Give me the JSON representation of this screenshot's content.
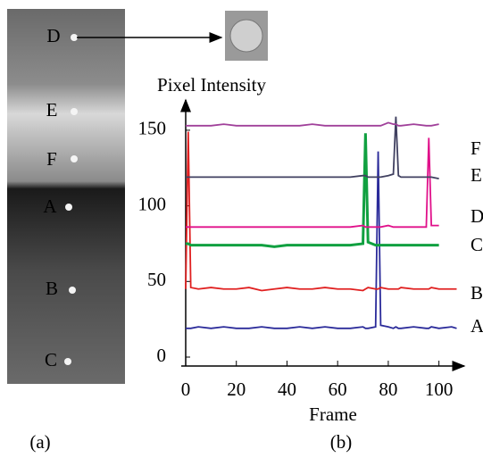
{
  "panel_a": {
    "labels": [
      "D",
      "E",
      "F",
      "A",
      "B",
      "C"
    ],
    "caption": "(a)"
  },
  "panel_b_caption": "(b)",
  "chart_data": {
    "type": "line",
    "y_label": "Pixel Intensity",
    "x_label": "Frame",
    "x": [
      0,
      1,
      2,
      5,
      10,
      15,
      20,
      25,
      30,
      35,
      40,
      45,
      50,
      55,
      60,
      65,
      70,
      71,
      72,
      75,
      76,
      77,
      80,
      82,
      83,
      84,
      85,
      90,
      95,
      96,
      97,
      100,
      105,
      107
    ],
    "xlim": [
      0,
      110
    ],
    "xticks": [
      0,
      20,
      40,
      60,
      80,
      100
    ],
    "ylim": [
      0,
      170
    ],
    "yticks": [
      0,
      50,
      100,
      150
    ],
    "series": [
      {
        "name": "A",
        "color": "#2b2b9a",
        "values": [
          19,
          19,
          19,
          20,
          19,
          20,
          19,
          19,
          20,
          19,
          19,
          20,
          19,
          20,
          19,
          19,
          20,
          19,
          19,
          20,
          136,
          21,
          20,
          19,
          20,
          19,
          19,
          20,
          19,
          19,
          20,
          19,
          20,
          19
        ]
      },
      {
        "name": "B",
        "color": "#e02020",
        "values": [
          45,
          149,
          46,
          45,
          46,
          45,
          45,
          46,
          44,
          45,
          46,
          45,
          45,
          46,
          45,
          45,
          44,
          45,
          46,
          45,
          45,
          46,
          45,
          45,
          45,
          45,
          46,
          45,
          45,
          45,
          46,
          45,
          45,
          45
        ]
      },
      {
        "name": "C",
        "color": "#10a040",
        "values": [
          75,
          75,
          74,
          74,
          74,
          74,
          74,
          74,
          74,
          73,
          74,
          74,
          74,
          74,
          74,
          74,
          75,
          148,
          76,
          74,
          74,
          74,
          74,
          74,
          74,
          74,
          74,
          74,
          74,
          74,
          74,
          74,
          null,
          null
        ]
      },
      {
        "name": "D",
        "color": "#e0108a",
        "values": [
          86,
          86,
          86,
          86,
          86,
          86,
          86,
          86,
          86,
          86,
          86,
          86,
          86,
          86,
          86,
          86,
          87,
          86,
          86,
          86,
          86,
          86,
          87,
          86,
          86,
          86,
          86,
          86,
          86,
          145,
          87,
          87,
          null,
          null
        ]
      },
      {
        "name": "E",
        "color": "#404060",
        "values": [
          119,
          119,
          119,
          119,
          119,
          119,
          119,
          119,
          119,
          119,
          119,
          119,
          119,
          119,
          119,
          119,
          120,
          120,
          119,
          119,
          119,
          119,
          120,
          121,
          159,
          120,
          119,
          119,
          119,
          119,
          119,
          118,
          null,
          null
        ]
      },
      {
        "name": "F",
        "color": "#a0409a",
        "values": [
          153,
          153,
          153,
          153,
          153,
          154,
          153,
          153,
          153,
          153,
          153,
          153,
          154,
          153,
          153,
          153,
          153,
          153,
          153,
          153,
          153,
          153,
          155,
          154,
          154,
          153,
          153,
          154,
          153,
          153,
          153,
          154,
          null,
          null
        ]
      }
    ]
  }
}
